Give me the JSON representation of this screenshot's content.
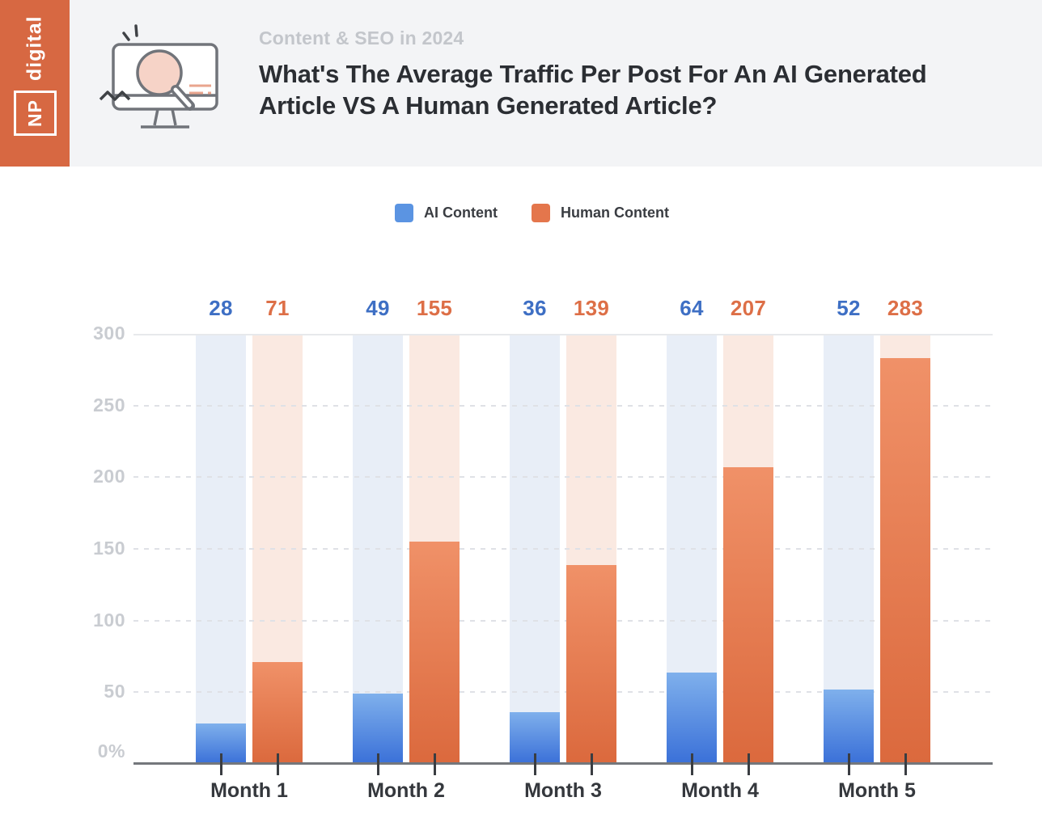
{
  "brand": {
    "word": "digital",
    "initials": "NP",
    "color": "#d76842"
  },
  "header": {
    "eyebrow": "Content & SEO in 2024",
    "title": "What's The Average Traffic Per Post For An AI Generated Article VS A Human Generated Article?"
  },
  "icon": {
    "name": "monitor-magnifier-illustration"
  },
  "chart_data": {
    "type": "bar",
    "categories": [
      "Month 1",
      "Month 2",
      "Month 3",
      "Month 4",
      "Month 5"
    ],
    "series": [
      {
        "name": "AI Content",
        "values": [
          28,
          49,
          36,
          64,
          52
        ],
        "color": "#5b94e2",
        "fill_gradient": [
          "#7fb0ec",
          "#3a70d8"
        ],
        "track_color": "#e8eef7",
        "label_color": "#3e6fc4"
      },
      {
        "name": "Human Content",
        "values": [
          71,
          155,
          139,
          207,
          283
        ],
        "color": "#e4764c",
        "fill_gradient": [
          "#f09168",
          "#db693d"
        ],
        "track_color": "#fae9e1",
        "label_color": "#dd6f47"
      }
    ],
    "yticks": [
      "300",
      "250",
      "200",
      "150",
      "100",
      "50",
      "0%"
    ],
    "ylim": [
      0,
      300
    ],
    "grid": "horizontal, dashed (top 300 line solid)",
    "legend_position": "top center",
    "tracks_full_height": true
  }
}
